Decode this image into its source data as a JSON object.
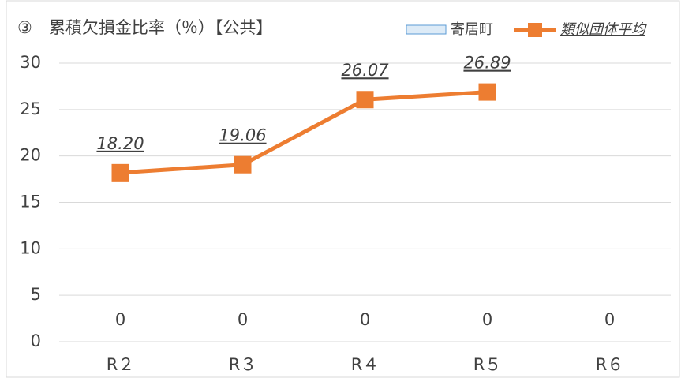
{
  "chart_data": {
    "type": "bar-line",
    "title": "③　累積欠損金比率（％）【公共】",
    "categories": [
      "R２",
      "R３",
      "R４",
      "R５",
      "R６"
    ],
    "series": [
      {
        "name": "寄居町",
        "type": "bar",
        "color": "#ddebf7",
        "border": "#5b9bd5",
        "values": [
          0,
          0,
          0,
          0,
          0
        ]
      },
      {
        "name": "類似団体平均",
        "type": "line",
        "color": "#ed7d31",
        "values": [
          18.2,
          19.06,
          26.07,
          26.89,
          null
        ],
        "value_labels": [
          "18.20",
          "19.06",
          "26.07",
          "26.89",
          null
        ]
      }
    ],
    "ylim": [
      0,
      30
    ],
    "yticks": [
      0,
      5,
      10,
      15,
      20,
      25,
      30
    ],
    "grid": true,
    "legend": "top-right"
  }
}
